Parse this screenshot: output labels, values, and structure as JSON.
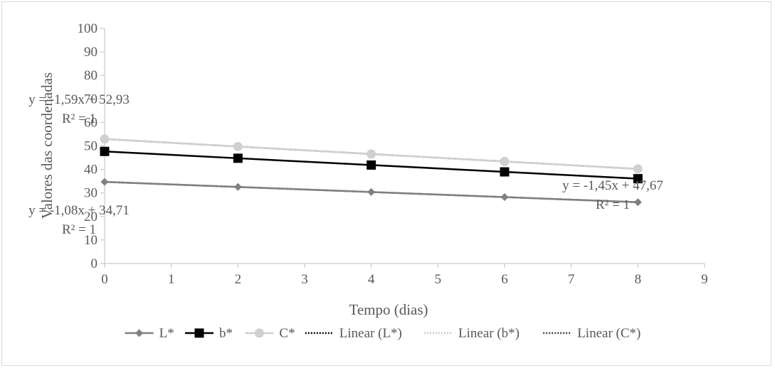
{
  "chart_data": {
    "type": "line",
    "xlabel": "Tempo (dias)",
    "ylabel": "Valores das coordenadas",
    "xlim": [
      0,
      9
    ],
    "ylim": [
      0,
      100
    ],
    "x_ticks": [
      "0",
      "1",
      "2",
      "3",
      "4",
      "5",
      "6",
      "7",
      "8",
      "9"
    ],
    "y_ticks": [
      "0",
      "10",
      "20",
      "30",
      "40",
      "50",
      "60",
      "70",
      "80",
      "90",
      "100"
    ],
    "grid": false,
    "legend_position": "bottom",
    "x": [
      0,
      2,
      4,
      6,
      8
    ],
    "series": [
      {
        "name": "L*",
        "values": [
          34.71,
          32.55,
          30.39,
          28.23,
          26.07
        ],
        "color": "#808080",
        "marker": "diamond"
      },
      {
        "name": "b*",
        "values": [
          47.67,
          44.77,
          41.87,
          38.97,
          36.07
        ],
        "color": "#000000",
        "marker": "square"
      },
      {
        "name": "C*",
        "values": [
          52.93,
          49.75,
          46.57,
          43.39,
          40.21
        ],
        "color": "#d0d0d0",
        "marker": "circle"
      }
    ],
    "trendlines": [
      {
        "name": "Linear (L*)",
        "slope": -1.08,
        "intercept": 34.71,
        "color": "#000000"
      },
      {
        "name": "Linear (b*)",
        "slope": -1.45,
        "intercept": 47.67,
        "color": "#c8c8c8"
      },
      {
        "name": "Linear (C*)",
        "slope": -1.59,
        "intercept": 52.93,
        "color": "#404040"
      }
    ],
    "annotations": [
      {
        "equation": "y = -1,59x + 52,93",
        "r2": "R² = 1"
      },
      {
        "equation": "y = -1,08x + 34,71",
        "r2": "R² = 1"
      },
      {
        "equation": "y = -1,45x + 47,67",
        "r2": "R² = 1"
      }
    ]
  }
}
